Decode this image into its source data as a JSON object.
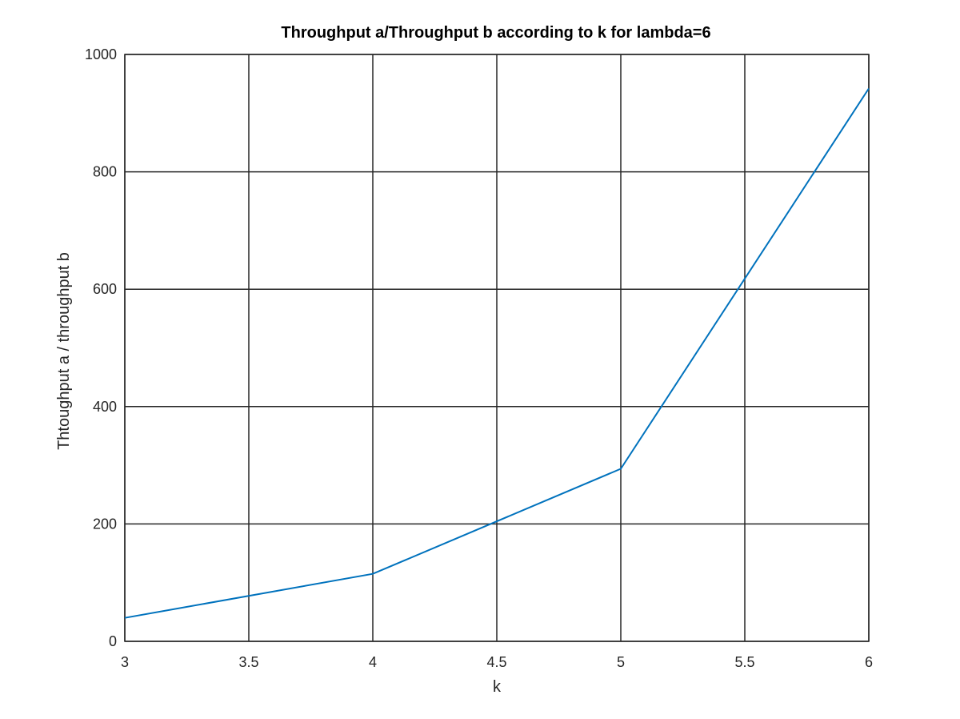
{
  "chart_data": {
    "type": "line",
    "title": "Throughput a/Throughput b according to k for lambda=6",
    "xlabel": "k",
    "ylabel": "Thtoughput a / throughput b",
    "xlim": [
      3,
      6
    ],
    "ylim": [
      0,
      1000
    ],
    "xticks": [
      3,
      3.5,
      4,
      4.5,
      5,
      5.5,
      6
    ],
    "xtick_labels": [
      "3",
      "3.5",
      "4",
      "4.5",
      "5",
      "5.5",
      "6"
    ],
    "yticks": [
      0,
      200,
      400,
      600,
      800,
      1000
    ],
    "ytick_labels": [
      "0",
      "200",
      "400",
      "600",
      "800",
      "1000"
    ],
    "grid": true,
    "series": [
      {
        "color": "#0072bd",
        "x": [
          3,
          4,
          5,
          6
        ],
        "y": [
          40,
          115,
          294,
          942
        ]
      }
    ]
  }
}
